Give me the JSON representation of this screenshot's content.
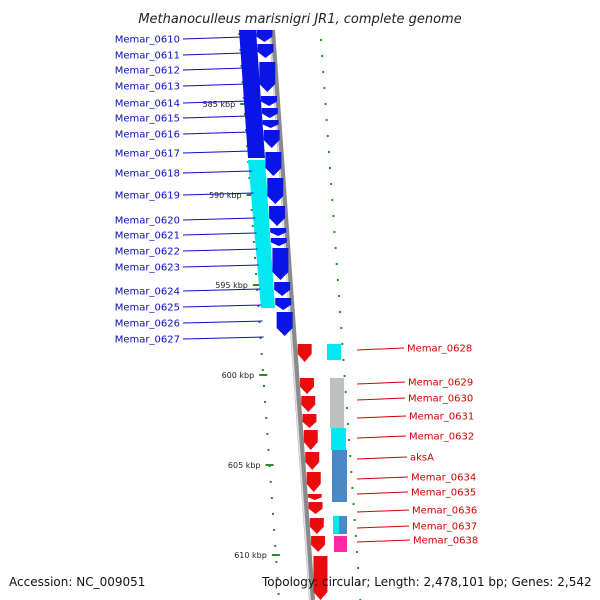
{
  "title": "Methanoculleus marisnigri JR1, complete genome",
  "footer": {
    "accession": "Accession: NC_009051",
    "topology": "Topology: circular; Length: 2,478,101 bp; Genes: 2,542"
  },
  "colors": {
    "forward_gene": "#0a14e6",
    "reverse_gene": "#e80c0c",
    "label_blue": "#0c0cc8",
    "label_red": "#d40000",
    "backbone": "#8a8a8a",
    "tick": "#2a8a2a",
    "cyan": "#00e8f0",
    "steel": "#4a88c8",
    "gray": "#bfbfbf",
    "magenta": "#ff2aa8"
  },
  "scale_ticks": [
    "585 kbp",
    "590 kbp",
    "595 kbp",
    "600 kbp",
    "605 kbp",
    "610 kbp"
  ],
  "left_genes": [
    "Memar_0610",
    "Memar_0611",
    "Memar_0612",
    "Memar_0613",
    "Memar_0614",
    "Memar_0615",
    "Memar_0616",
    "Memar_0617",
    "Memar_0618",
    "Memar_0619",
    "Memar_0620",
    "Memar_0621",
    "Memar_0622",
    "Memar_0623",
    "Memar_0624",
    "Memar_0625",
    "Memar_0626",
    "Memar_0627"
  ],
  "right_genes": [
    "Memar_0628",
    "Memar_0629",
    "Memar_0630",
    "Memar_0631",
    "Memar_0632",
    "aksA",
    "Memar_0634",
    "Memar_0635",
    "Memar_0636",
    "Memar_0637",
    "Memar_0638"
  ]
}
